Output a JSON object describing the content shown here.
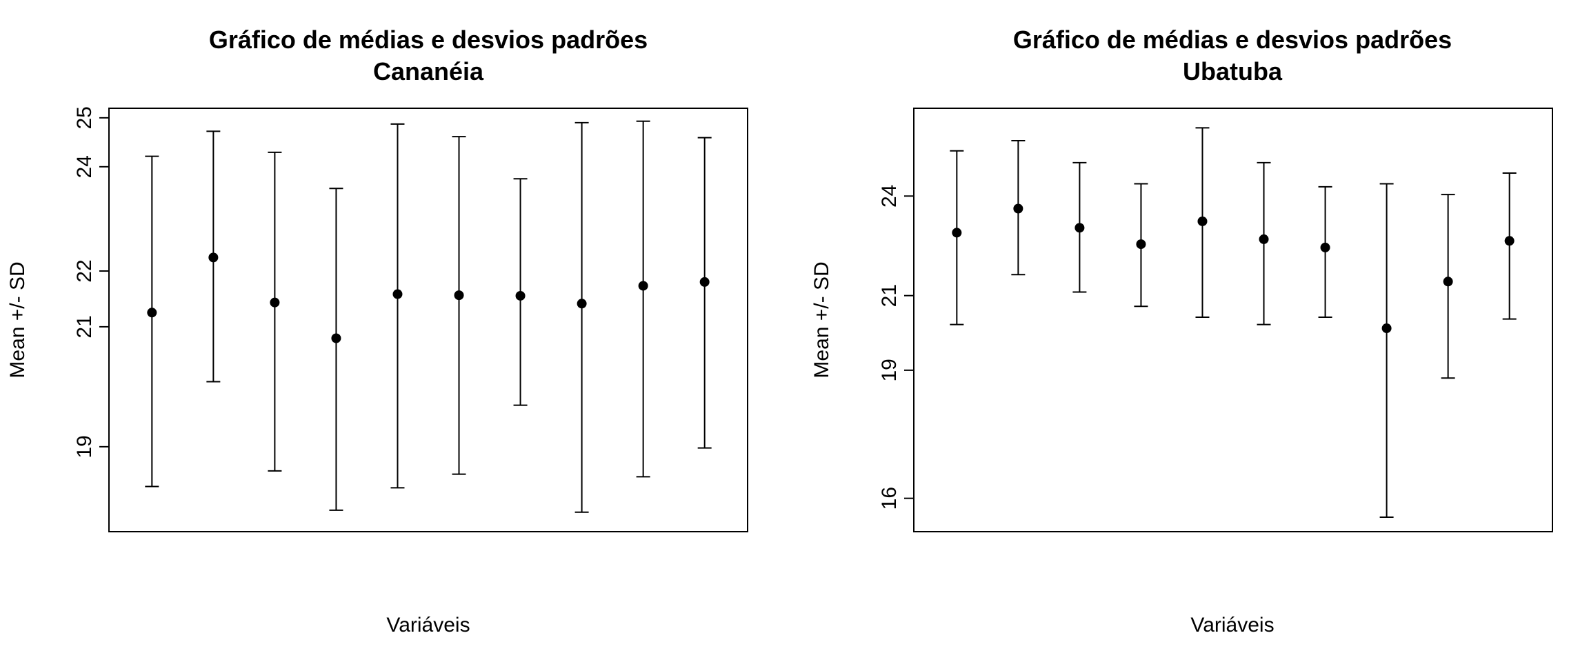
{
  "chart_data": [
    {
      "type": "errorbar",
      "title": "Gráfico de médias e desvios padrões",
      "subtitle": "Cananéia",
      "xlabel": "Variáveis",
      "ylabel": "Mean +/- SD",
      "yscale": "log",
      "ylim": [
        17.7,
        25.2
      ],
      "yticks": [
        19,
        21,
        22,
        24,
        25
      ],
      "grid": false,
      "legend": "none",
      "series": [
        {
          "means": [
            21.25,
            22.25,
            21.43,
            20.8,
            21.58,
            21.56,
            21.55,
            21.41,
            21.73,
            21.8
          ],
          "lower": [
            18.38,
            20.06,
            18.62,
            18.02,
            18.36,
            18.57,
            19.67,
            17.99,
            18.53,
            18.98
          ],
          "upper": [
            24.21,
            24.72,
            24.29,
            23.57,
            24.87,
            24.61,
            23.76,
            24.9,
            24.93,
            24.59
          ]
        }
      ],
      "color": "#000000"
    },
    {
      "type": "errorbar",
      "title": "Gráfico de médias e desvios padrões",
      "subtitle": "Ubatuba",
      "xlabel": "Variáveis",
      "ylabel": "Mean +/- SD",
      "yscale": "log",
      "ylim": [
        15.3,
        27.0
      ],
      "yticks": [
        16,
        19,
        21,
        24
      ],
      "grid": false,
      "legend": "none",
      "series": [
        {
          "means": [
            22.85,
            23.6,
            23.0,
            22.5,
            23.2,
            22.65,
            22.4,
            20.1,
            21.4,
            22.6
          ],
          "lower": [
            20.2,
            21.6,
            21.1,
            20.7,
            20.4,
            20.2,
            20.4,
            15.6,
            18.8,
            20.35
          ],
          "upper": [
            25.5,
            25.85,
            25.1,
            24.4,
            26.3,
            25.1,
            24.3,
            24.4,
            24.05,
            24.75
          ]
        }
      ],
      "color": "#000000"
    }
  ]
}
